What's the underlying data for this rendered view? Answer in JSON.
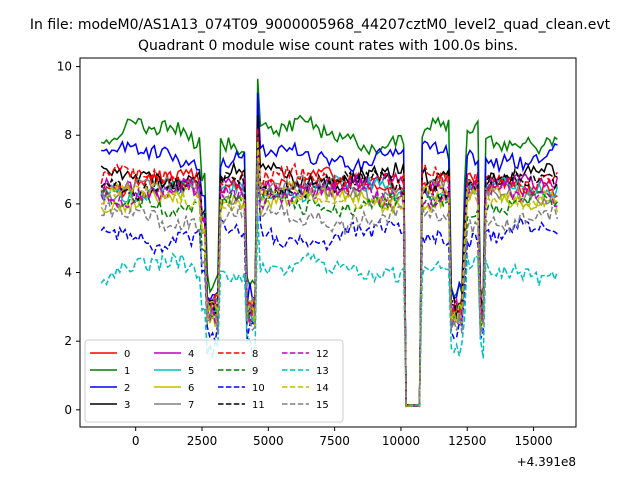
{
  "chart_data": {
    "type": "line",
    "suptitle": "In file: modeM0/AS1A13_074T09_9000005968_44207cztM0_level2_quad_clean.evt",
    "title": "Quadrant 0 module wise count rates with 100.0s bins.",
    "xlabel": "",
    "ylabel": "",
    "offset_text": "+4.391e8",
    "xlim": [
      -2100,
      16600
    ],
    "ylim": [
      -0.5,
      10.25
    ],
    "x_ticks": [
      0,
      2500,
      5000,
      7500,
      10000,
      12500,
      15000
    ],
    "x_tick_labels": [
      "0",
      "2500",
      "5000",
      "7500",
      "10000",
      "12500",
      "15000"
    ],
    "y_ticks": [
      0,
      2,
      4,
      6,
      8,
      10
    ],
    "y_tick_labels": [
      "0",
      "2",
      "4",
      "6",
      "8",
      "10"
    ],
    "x_start": -1300,
    "x_step": 100,
    "gti": [
      [
        -1300,
        2600
      ],
      [
        3200,
        4100
      ],
      [
        4600,
        10100
      ],
      [
        10800,
        11800
      ],
      [
        12400,
        12900
      ],
      [
        13200,
        15300
      ],
      [
        15400,
        15900
      ]
    ],
    "legend_loc": "lower left",
    "legend_columns": 4,
    "series": [
      {
        "name": "0",
        "color": "#ff0000",
        "style": "solid",
        "level": 6.6,
        "wobble": 0.22
      },
      {
        "name": "1",
        "color": "#008000",
        "style": "solid",
        "level": 8.0,
        "wobble": 0.3
      },
      {
        "name": "2",
        "color": "#0000ff",
        "style": "solid",
        "level": 7.4,
        "wobble": 0.25
      },
      {
        "name": "3",
        "color": "#000000",
        "style": "solid",
        "level": 6.8,
        "wobble": 0.22
      },
      {
        "name": "4",
        "color": "#bf00bf",
        "style": "solid",
        "level": 6.5,
        "wobble": 0.2
      },
      {
        "name": "5",
        "color": "#00bfbf",
        "style": "solid",
        "level": 6.4,
        "wobble": 0.2
      },
      {
        "name": "6",
        "color": "#bfbf00",
        "style": "solid",
        "level": 6.1,
        "wobble": 0.2
      },
      {
        "name": "7",
        "color": "#808080",
        "style": "solid",
        "level": 6.4,
        "wobble": 0.2
      },
      {
        "name": "8",
        "color": "#ff0000",
        "style": "dashed",
        "level": 6.7,
        "wobble": 0.22
      },
      {
        "name": "9",
        "color": "#008000",
        "style": "dashed",
        "level": 6.0,
        "wobble": 0.2
      },
      {
        "name": "10",
        "color": "#0000ff",
        "style": "dashed",
        "level": 5.1,
        "wobble": 0.25
      },
      {
        "name": "11",
        "color": "#000000",
        "style": "dashed",
        "level": 6.6,
        "wobble": 0.22
      },
      {
        "name": "12",
        "color": "#bf00bf",
        "style": "dashed",
        "level": 6.3,
        "wobble": 0.2
      },
      {
        "name": "13",
        "color": "#00bfbf",
        "style": "dashed",
        "level": 4.1,
        "wobble": 0.22
      },
      {
        "name": "14",
        "color": "#bfbf00",
        "style": "dashed",
        "level": 6.2,
        "wobble": 0.2
      },
      {
        "name": "15",
        "color": "#808080",
        "style": "dashed",
        "level": 5.6,
        "wobble": 0.22
      }
    ]
  }
}
